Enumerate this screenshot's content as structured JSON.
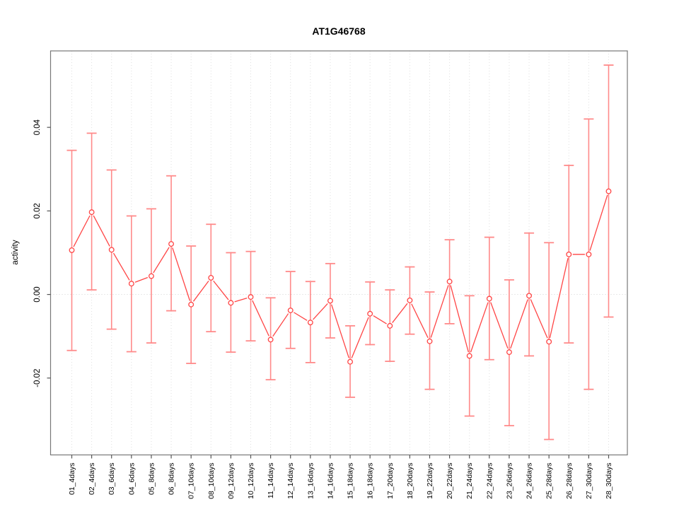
{
  "chart_data": {
    "type": "line",
    "subtype": "points_with_error_bars",
    "title": "AT1G46768",
    "xlabel": "",
    "ylabel": "activity",
    "legend": "none",
    "grid": "vertical_dotted_per_category_plus_dotted_zero_line",
    "categories": [
      "01_4days",
      "02_4days",
      "03_6days",
      "04_6days",
      "05_8days",
      "06_8days",
      "07_10days",
      "08_10days",
      "09_12days",
      "10_12days",
      "11_14days",
      "12_14days",
      "13_16days",
      "14_16days",
      "15_18days",
      "16_18days",
      "17_20days",
      "18_20days",
      "19_22days",
      "20_22days",
      "21_24days",
      "22_24days",
      "23_26days",
      "24_26days",
      "25_28days",
      "26_28days",
      "27_30days",
      "28_30days"
    ],
    "series": [
      {
        "name": "activity",
        "values": [
          0.0106,
          0.0197,
          0.0107,
          0.0026,
          0.0044,
          0.0121,
          -0.0024,
          0.004,
          -0.002,
          -0.0006,
          -0.0108,
          -0.0038,
          -0.0067,
          -0.0015,
          -0.0161,
          -0.0046,
          -0.0075,
          -0.0014,
          -0.0112,
          0.0031,
          -0.0147,
          -0.001,
          -0.0138,
          -0.0003,
          -0.0113,
          0.0096,
          0.0096,
          0.0247
        ],
        "lower": [
          -0.0134,
          0.0011,
          -0.0083,
          -0.0137,
          -0.0116,
          -0.0039,
          -0.0165,
          -0.0089,
          -0.0138,
          -0.0111,
          -0.0204,
          -0.0129,
          -0.0163,
          -0.0104,
          -0.0246,
          -0.012,
          -0.016,
          -0.0095,
          -0.0227,
          -0.007,
          -0.0291,
          -0.0156,
          -0.0314,
          -0.0147,
          -0.0347,
          -0.0116,
          -0.0227,
          -0.0054
        ],
        "upper": [
          0.0345,
          0.0386,
          0.0298,
          0.0188,
          0.0205,
          0.0284,
          0.0116,
          0.0168,
          0.01,
          0.0103,
          -0.0008,
          0.0055,
          0.0031,
          0.0074,
          -0.0075,
          0.003,
          0.0011,
          0.0066,
          0.0006,
          0.0131,
          -0.0003,
          0.0137,
          0.0035,
          0.0147,
          0.0124,
          0.0309,
          0.042,
          0.0549
        ]
      }
    ],
    "ylim": [
      -0.0384,
      0.0583
    ],
    "yticks": [
      -0.02,
      0.0,
      0.02,
      0.04
    ],
    "ytick_labels": [
      "-0.02",
      "0.00",
      "0.02",
      "0.04"
    ],
    "colors": {
      "error_bar": "#ff8a8a",
      "line": "#ff4545",
      "marker_stroke": "#ff4545",
      "marker_fill": "#ffffff",
      "grid": "#dedede",
      "zero_line": "#d4d4d4",
      "box": "#777777",
      "tick": "#555555",
      "text": "#000000"
    }
  }
}
